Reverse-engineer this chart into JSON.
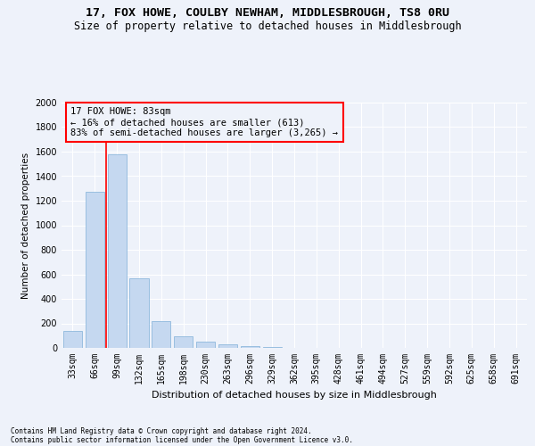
{
  "title1": "17, FOX HOWE, COULBY NEWHAM, MIDDLESBROUGH, TS8 0RU",
  "title2": "Size of property relative to detached houses in Middlesbrough",
  "xlabel": "Distribution of detached houses by size in Middlesbrough",
  "ylabel": "Number of detached properties",
  "bar_color": "#c5d8f0",
  "bar_edge_color": "#7fb0d8",
  "bins": [
    "33sqm",
    "66sqm",
    "99sqm",
    "132sqm",
    "165sqm",
    "198sqm",
    "230sqm",
    "263sqm",
    "296sqm",
    "329sqm",
    "362sqm",
    "395sqm",
    "428sqm",
    "461sqm",
    "494sqm",
    "527sqm",
    "559sqm",
    "592sqm",
    "625sqm",
    "658sqm",
    "691sqm"
  ],
  "values": [
    140,
    1270,
    1580,
    570,
    220,
    95,
    50,
    30,
    15,
    5,
    2,
    0,
    0,
    0,
    0,
    0,
    0,
    0,
    0,
    0,
    0
  ],
  "vline_pos": 1.5,
  "annotation_text": "17 FOX HOWE: 83sqm\n← 16% of detached houses are smaller (613)\n83% of semi-detached houses are larger (3,265) →",
  "ylim": [
    0,
    2000
  ],
  "yticks": [
    0,
    200,
    400,
    600,
    800,
    1000,
    1200,
    1400,
    1600,
    1800,
    2000
  ],
  "footer1": "Contains HM Land Registry data © Crown copyright and database right 2024.",
  "footer2": "Contains public sector information licensed under the Open Government Licence v3.0.",
  "background_color": "#eef2fa",
  "grid_color": "#ffffff",
  "title1_fontsize": 9.5,
  "title2_fontsize": 8.5,
  "xlabel_fontsize": 8,
  "ylabel_fontsize": 7.5,
  "annotation_fontsize": 7.5,
  "tick_fontsize": 7,
  "footer_fontsize": 5.5
}
